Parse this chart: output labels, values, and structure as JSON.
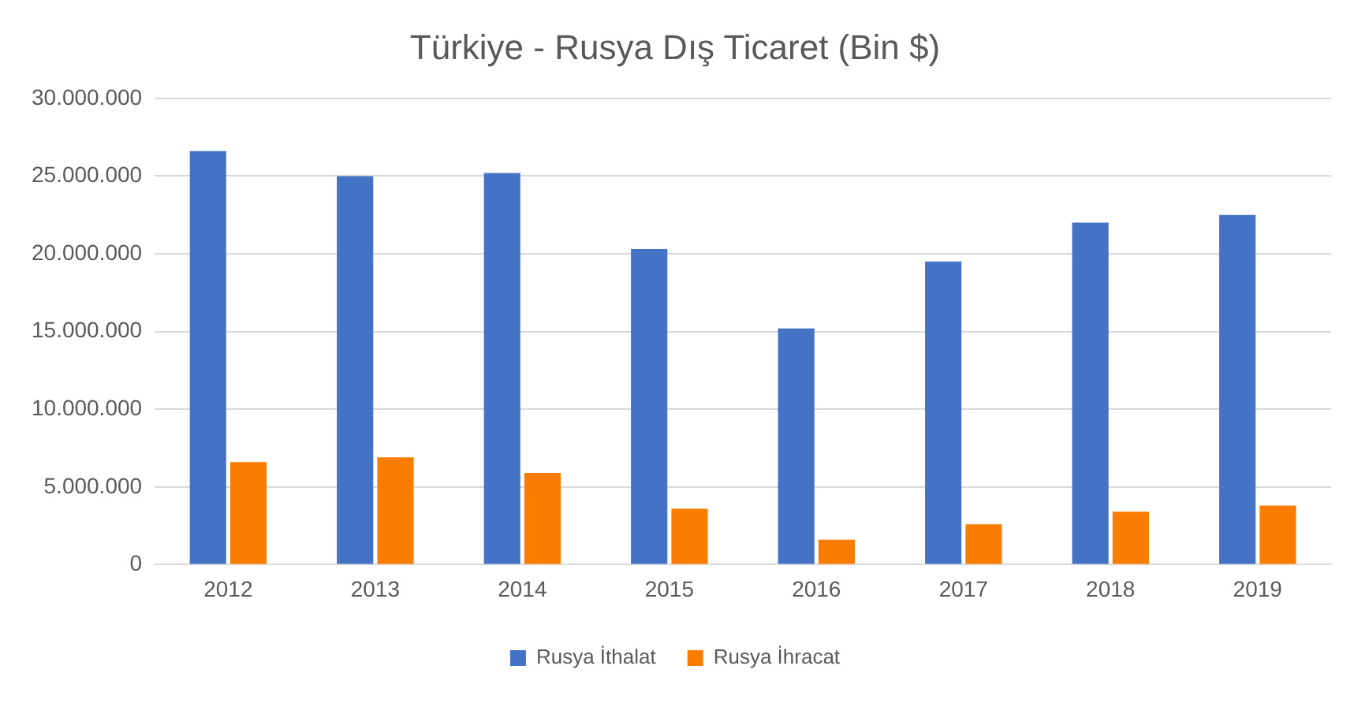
{
  "chart_data": {
    "type": "bar",
    "title": "Türkiye - Rusya Dış Ticaret (Bin $)",
    "categories": [
      "2012",
      "2013",
      "2014",
      "2015",
      "2016",
      "2017",
      "2018",
      "2019"
    ],
    "series": [
      {
        "name": "Rusya İthalat",
        "color": "#4472c4",
        "values": [
          26600000,
          25000000,
          25200000,
          20300000,
          15200000,
          19500000,
          22000000,
          22500000
        ]
      },
      {
        "name": "Rusya İhracat",
        "color": "#fa7d00",
        "values": [
          6600000,
          6900000,
          5900000,
          3600000,
          1600000,
          2600000,
          3400000,
          3800000
        ]
      }
    ],
    "ylim": [
      0,
      30000000
    ],
    "yticks": [
      {
        "value": 0,
        "label": "0"
      },
      {
        "value": 5000000,
        "label": "5.000.000"
      },
      {
        "value": 10000000,
        "label": "10.000.000"
      },
      {
        "value": 15000000,
        "label": "15.000.000"
      },
      {
        "value": 20000000,
        "label": "20.000.000"
      },
      {
        "value": 25000000,
        "label": "25.000.000"
      },
      {
        "value": 30000000,
        "label": "30.000.000"
      }
    ],
    "grid": "y",
    "legend": "bottom"
  }
}
